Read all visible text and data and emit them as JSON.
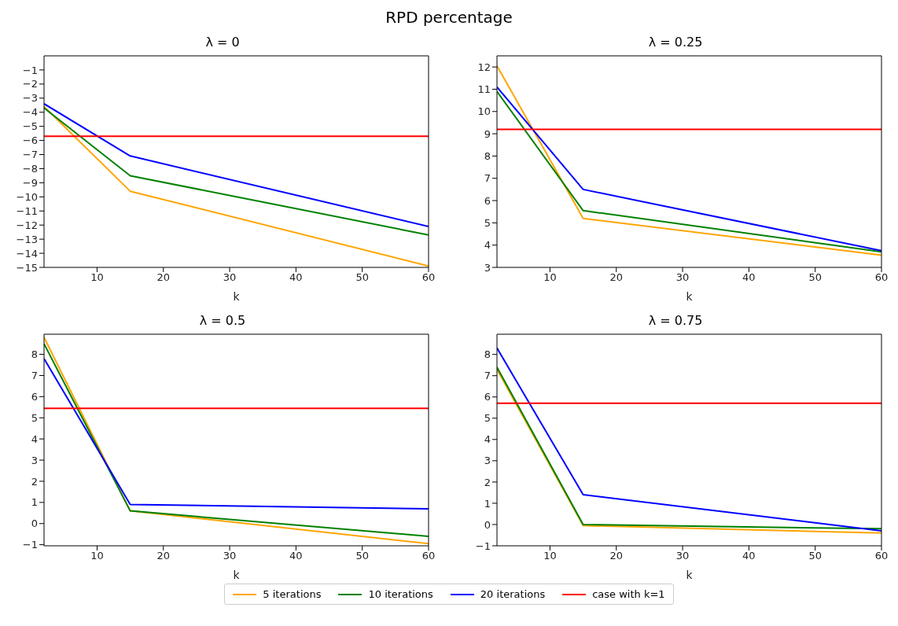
{
  "chart_data": [
    {
      "type": "line",
      "title": "λ = 0",
      "annotations": [
        "RPD percentage"
      ],
      "xlabel": "k",
      "xlim": [
        2,
        60
      ],
      "xticks": [
        10,
        20,
        30,
        40,
        50,
        60
      ],
      "ylim": [
        -15,
        0
      ],
      "yticks": [
        -15,
        -14,
        -13,
        -12,
        -11,
        -10,
        -9,
        -8,
        -7,
        -6,
        -5,
        -4,
        -3,
        -2,
        -1
      ],
      "grid": false,
      "legend": "bottom",
      "series": [
        {
          "name": "5 iterations",
          "color": "#ffa500",
          "x": [
            2,
            15,
            60
          ],
          "values": [
            -3.6,
            -9.6,
            -14.9
          ]
        },
        {
          "name": "10 iterations",
          "color": "#008000",
          "x": [
            2,
            15,
            60
          ],
          "values": [
            -3.7,
            -8.5,
            -12.7
          ]
        },
        {
          "name": "20 iterations",
          "color": "#0000ff",
          "x": [
            2,
            15,
            60
          ],
          "values": [
            -3.4,
            -7.1,
            -12.1
          ]
        },
        {
          "name": "case with k=1",
          "color": "#ff0000",
          "x": [
            2,
            60
          ],
          "values": [
            -5.7,
            -5.7
          ]
        }
      ]
    },
    {
      "type": "line",
      "title": "λ = 0.25",
      "xlabel": "k",
      "xlim": [
        2,
        60
      ],
      "xticks": [
        10,
        20,
        30,
        40,
        50,
        60
      ],
      "ylim": [
        3,
        12.5
      ],
      "yticks": [
        3,
        4,
        5,
        6,
        7,
        8,
        9,
        10,
        11,
        12
      ],
      "grid": false,
      "series": [
        {
          "color": "#ffa500",
          "x": [
            2,
            15,
            60
          ],
          "values": [
            12.05,
            5.2,
            3.55
          ]
        },
        {
          "color": "#008000",
          "x": [
            2,
            15,
            60
          ],
          "values": [
            10.9,
            5.55,
            3.7
          ]
        },
        {
          "color": "#0000ff",
          "x": [
            2,
            15,
            60
          ],
          "values": [
            11.1,
            6.5,
            3.75
          ]
        },
        {
          "color": "#ff0000",
          "x": [
            2,
            60
          ],
          "values": [
            9.2,
            9.2
          ]
        }
      ]
    },
    {
      "type": "line",
      "title": "λ = 0.5",
      "xlabel": "k",
      "xlim": [
        2,
        60
      ],
      "xticks": [
        10,
        20,
        30,
        40,
        50,
        60
      ],
      "ylim": [
        -1.05,
        8.95
      ],
      "yticks": [
        -1,
        0,
        1,
        2,
        3,
        4,
        5,
        6,
        7,
        8
      ],
      "grid": false,
      "series": [
        {
          "color": "#ffa500",
          "x": [
            2,
            15,
            60
          ],
          "values": [
            8.8,
            0.6,
            -0.95
          ]
        },
        {
          "color": "#008000",
          "x": [
            2,
            15,
            60
          ],
          "values": [
            8.5,
            0.6,
            -0.6
          ]
        },
        {
          "color": "#0000ff",
          "x": [
            2,
            15,
            60
          ],
          "values": [
            7.8,
            0.9,
            0.7
          ]
        },
        {
          "color": "#ff0000",
          "x": [
            2,
            60
          ],
          "values": [
            5.45,
            5.45
          ]
        }
      ]
    },
    {
      "type": "line",
      "title": "λ = 0.75",
      "xlabel": "k",
      "xlim": [
        2,
        60
      ],
      "xticks": [
        10,
        20,
        30,
        40,
        50,
        60
      ],
      "ylim": [
        -1,
        8.95
      ],
      "yticks": [
        -1,
        0,
        1,
        2,
        3,
        4,
        5,
        6,
        7,
        8
      ],
      "grid": false,
      "series": [
        {
          "color": "#ffa500",
          "x": [
            2,
            15,
            60
          ],
          "values": [
            7.3,
            -0.05,
            -0.4
          ]
        },
        {
          "color": "#008000",
          "x": [
            2,
            15,
            60
          ],
          "values": [
            7.4,
            0,
            -0.2
          ]
        },
        {
          "color": "#0000ff",
          "x": [
            2,
            15,
            60
          ],
          "values": [
            8.3,
            1.4,
            -0.3
          ]
        },
        {
          "color": "#ff0000",
          "x": [
            2,
            60
          ],
          "values": [
            5.7,
            5.7
          ]
        }
      ]
    }
  ]
}
